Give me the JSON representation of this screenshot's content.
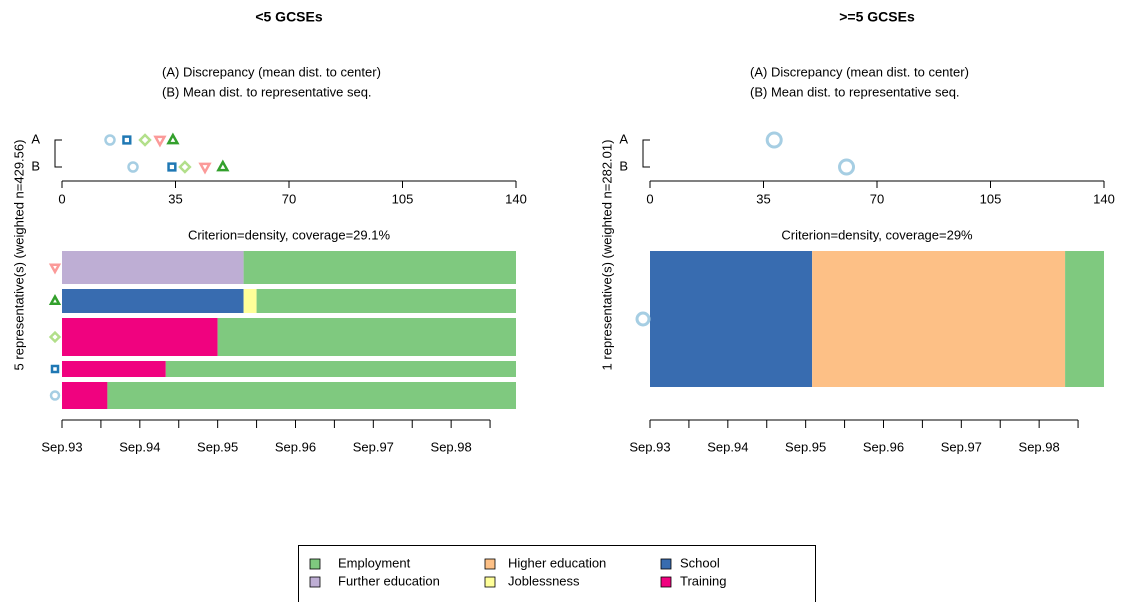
{
  "chart_data": [
    {
      "type": "representative-sequences",
      "title": "<5 GCSEs",
      "ylabel": "5 representative(s) (weighted n=429.56)",
      "measure_labels": [
        "(A) Discrepancy (mean dist. to center)",
        "(B) Mean dist. to representative seq."
      ],
      "rows": [
        "A",
        "B"
      ],
      "xlim": [
        0,
        140
      ],
      "xticks": [
        0,
        35,
        70,
        105,
        140
      ],
      "subtitle": "Criterion=density, coverage=29.1%",
      "representatives": [
        {
          "shape": "triangle-down",
          "color": "#fb9a99",
          "discrepancy": 30.2,
          "mean_dist": 44.1,
          "weight": 33,
          "states": [
            "Further education",
            "Employment"
          ],
          "durations": [
            28,
            42
          ]
        },
        {
          "shape": "triangle-up",
          "color": "#33a02c",
          "discrepancy": 34.2,
          "mean_dist": 49.6,
          "weight": 24,
          "states": [
            "School",
            "Joblessness",
            "Employment"
          ],
          "durations": [
            28,
            2,
            40
          ]
        },
        {
          "shape": "diamond",
          "color": "#b2df8a",
          "discrepancy": 25.6,
          "mean_dist": 37.9,
          "weight": 38,
          "states": [
            "Training",
            "Employment"
          ],
          "durations": [
            24,
            46
          ]
        },
        {
          "shape": "square",
          "color": "#1f78b4",
          "discrepancy": 20,
          "mean_dist": 33.9,
          "weight": 16,
          "states": [
            "Training",
            "Employment"
          ],
          "durations": [
            16,
            54
          ]
        },
        {
          "shape": "circle",
          "color": "#a6cee3",
          "discrepancy": 14.8,
          "mean_dist": 21.9,
          "weight": 27,
          "states": [
            "Training",
            "Employment"
          ],
          "durations": [
            7,
            63
          ]
        }
      ],
      "time_lim": [
        0,
        70
      ],
      "time_ticks": [
        {
          "value": 0,
          "label": "Sep.93"
        },
        {
          "value": 12,
          "label": "Sep.94"
        },
        {
          "value": 24,
          "label": "Sep.95"
        },
        {
          "value": 36,
          "label": "Sep.96"
        },
        {
          "value": 48,
          "label": "Sep.97"
        },
        {
          "value": 60,
          "label": "Sep.98"
        }
      ],
      "time_minor_ticks": [
        6,
        18,
        30,
        42,
        54,
        66
      ]
    },
    {
      "type": "representative-sequences",
      "title": ">=5 GCSEs",
      "ylabel": "1 representative(s) (weighted n=282.01)",
      "measure_labels": [
        "(A) Discrepancy (mean dist. to center)",
        "(B) Mean dist. to representative seq."
      ],
      "rows": [
        "A",
        "B"
      ],
      "xlim": [
        0,
        140
      ],
      "xticks": [
        0,
        35,
        70,
        105,
        140
      ],
      "subtitle": "Criterion=density, coverage=29%",
      "representatives": [
        {
          "shape": "circle",
          "color": "#a6cee3",
          "discrepancy": 38.3,
          "mean_dist": 60.6,
          "weight": 136,
          "states": [
            "School",
            "Higher education",
            "Employment"
          ],
          "durations": [
            25,
            39,
            6
          ]
        }
      ],
      "time_lim": [
        0,
        70
      ],
      "time_ticks": [
        {
          "value": 0,
          "label": "Sep.93"
        },
        {
          "value": 12,
          "label": "Sep.94"
        },
        {
          "value": 24,
          "label": "Sep.95"
        },
        {
          "value": 36,
          "label": "Sep.96"
        },
        {
          "value": 48,
          "label": "Sep.97"
        },
        {
          "value": 60,
          "label": "Sep.98"
        }
      ],
      "time_minor_ticks": [
        6,
        18,
        30,
        42,
        54,
        66
      ]
    }
  ],
  "legend": [
    {
      "name": "Employment",
      "color": "#7fc97f"
    },
    {
      "name": "Further education",
      "color": "#beaed4"
    },
    {
      "name": "Higher education",
      "color": "#fdc086"
    },
    {
      "name": "Joblessness",
      "color": "#ffff99"
    },
    {
      "name": "School",
      "color": "#386cb0"
    },
    {
      "name": "Training",
      "color": "#f0027f"
    }
  ]
}
